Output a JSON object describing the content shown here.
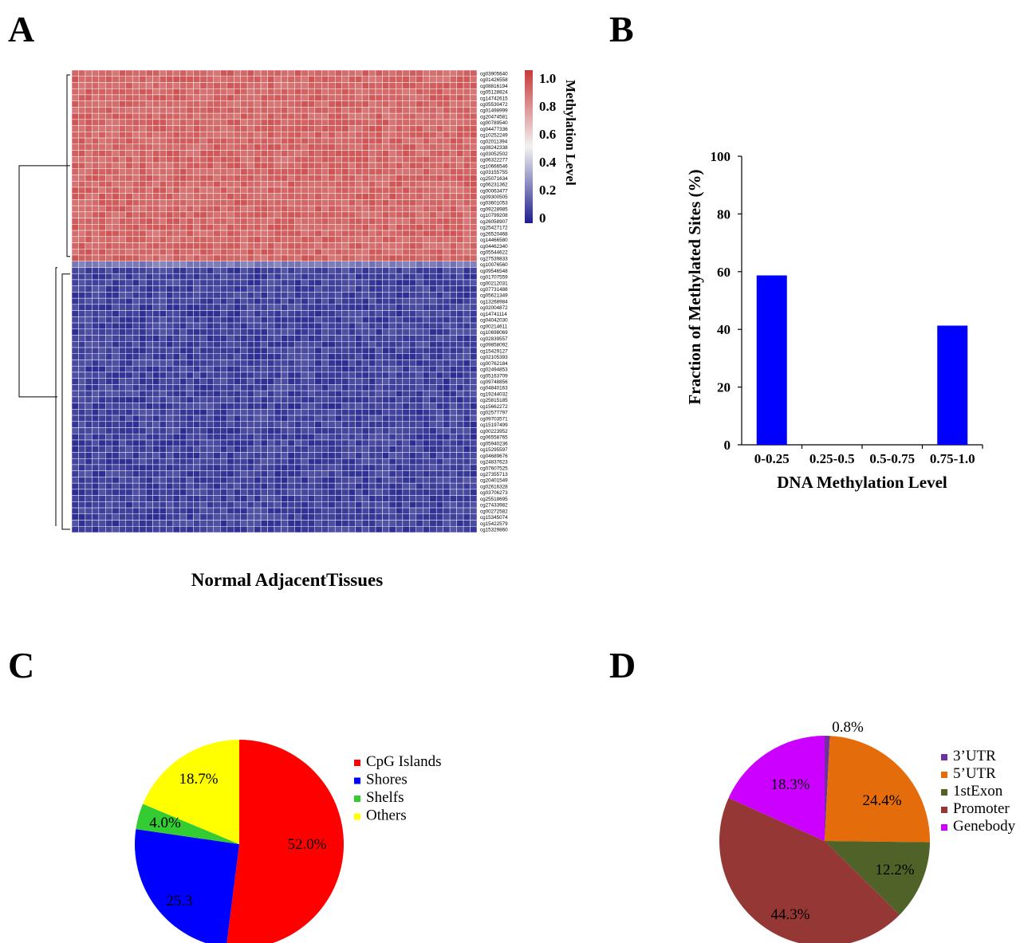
{
  "panels": {
    "a": "A",
    "b": "B",
    "c": "C",
    "d": "D"
  },
  "chart_data": [
    {
      "type": "heatmap",
      "panel": "A",
      "xlabel": "Normal AdjacentTissues",
      "colorbar": {
        "label": "Methylation Level",
        "ticks": [
          "1.0",
          "0.8",
          "0.6",
          "0.4",
          "0.2",
          "0"
        ],
        "range": [
          0,
          1
        ],
        "low_color": "#1f1f8c",
        "mid_color": "#f2f2f2",
        "high_color": "#c83a3a"
      },
      "n_columns": 60,
      "clusters": [
        {
          "name": "high",
          "approx_level": 0.88,
          "rows": [
            "cg03905640",
            "cg01426558",
            "cg08816194",
            "cg05128824",
            "cg14742615",
            "cg05530472",
            "cg01498999",
            "cg20474581",
            "cg00789540",
            "cg04477336",
            "cg10252249",
            "cg02011394",
            "cg08242338",
            "cg03052502",
            "cg06322277",
            "cg10666546",
            "cg03155755",
            "cg25071634",
            "cg06231362",
            "cg00063477",
            "cg09300505",
            "cg03601053",
            "cg09228985",
            "cg10799208",
            "cg26058907",
            "cg25427172",
            "cg26520468",
            "cg14466580",
            "cg04462340",
            "cg05544622",
            "cg27539833"
          ]
        },
        {
          "name": "low",
          "approx_level": 0.08,
          "rows": [
            "cg10076560",
            "cg09546548",
            "cg01707559",
            "cg00212031",
            "cg07731488",
            "cg05621349",
            "cg13268984",
            "cg02004872",
            "cg14741114",
            "cg04042030",
            "cg00214611",
            "cg10698069",
            "cg02839557",
            "cg09858092",
            "cg15429127",
            "cg02105393",
            "cg00762184",
            "cg02494853",
            "cg05163709",
            "cg09748856",
            "cg04840163",
            "cg19244032",
            "cg25815185",
            "cg15662272",
            "cg02577797",
            "cg09703571",
            "cg15197499",
            "cg00223952",
            "cg06558765",
            "cg05940236",
            "cg15295597",
            "cg04689676",
            "cg24837623",
            "cg07607525",
            "cg27355713",
            "cg20401549",
            "cg02616328",
            "cg03706273",
            "cg25518695",
            "cg27433982",
            "cg00272582",
            "cg15345074",
            "cg15422579",
            "cg15329860"
          ]
        }
      ]
    },
    {
      "type": "bar",
      "panel": "B",
      "categories": [
        "0-0.25",
        "0.25-0.5",
        "0.5-0.75",
        "0.75-1.0"
      ],
      "values": [
        58.7,
        0,
        0,
        41.3
      ],
      "ylim": [
        0,
        100
      ],
      "yticks": [
        "0",
        "20",
        "40",
        "60",
        "80",
        "100"
      ],
      "xlabel": "DNA Methylation Level",
      "ylabel": "Fraction of Methylated Sites  (%)",
      "color": "#0000ff"
    },
    {
      "type": "pie",
      "panel": "C",
      "legend_position": "right",
      "slices": [
        {
          "label": "CpG Islands",
          "value": 52.0,
          "text": "52.0%",
          "color": "#ff0000"
        },
        {
          "label": "Shores",
          "value": 25.3,
          "text": "25.3",
          "color": "#0000ff"
        },
        {
          "label": "Shelfs",
          "value": 4.0,
          "text": "4.0%",
          "color": "#33cc33"
        },
        {
          "label": "Others",
          "value": 18.7,
          "text": "18.7%",
          "color": "#ffff00"
        }
      ]
    },
    {
      "type": "pie",
      "panel": "D",
      "legend_position": "right",
      "slices": [
        {
          "label": "3’UTR",
          "value": 0.8,
          "text": "0.8%",
          "color": "#7030a0"
        },
        {
          "label": "5’UTR",
          "value": 24.4,
          "text": "24.4%",
          "color": "#e46c0a"
        },
        {
          "label": "1stExon",
          "value": 12.2,
          "text": "12.2%",
          "color": "#4f6228"
        },
        {
          "label": "Promoter",
          "value": 44.3,
          "text": "44.3%",
          "color": "#953735"
        },
        {
          "label": "Genebody",
          "value": 18.3,
          "text": "18.3%",
          "color": "#cc00ff"
        }
      ]
    }
  ]
}
